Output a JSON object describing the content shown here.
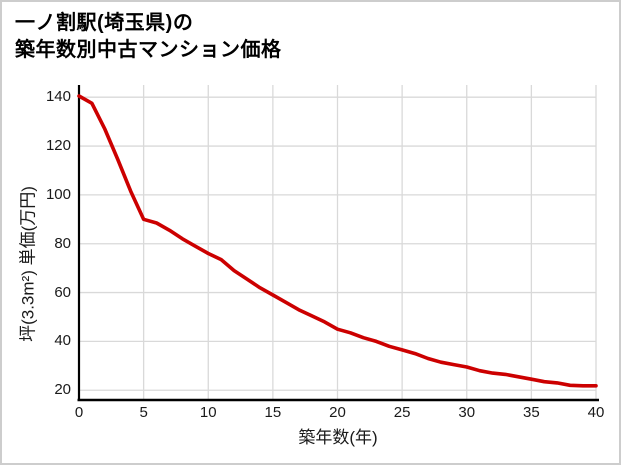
{
  "title": {
    "line1": "一ノ割駅(埼玉県)の",
    "line2": "築年数別中古マンション価格"
  },
  "colors": {
    "line": "#cc0000",
    "grid": "#d9d9d9",
    "axis": "#000000",
    "text": "#1a1a1a",
    "border": "#cdcdcd",
    "background": "#ffffff"
  },
  "chart_data": {
    "type": "line",
    "title": "一ノ割駅(埼玉県)の築年数別中古マンション価格",
    "xlabel": "築年数(年)",
    "ylabel": "坪(3.3m²) 単価(万円)",
    "x": [
      0,
      1,
      2,
      3,
      4,
      5,
      6,
      7,
      8,
      9,
      10,
      11,
      12,
      13,
      14,
      15,
      16,
      17,
      18,
      19,
      20,
      21,
      22,
      23,
      24,
      25,
      26,
      27,
      28,
      29,
      30,
      31,
      32,
      33,
      34,
      35,
      36,
      37,
      38,
      39,
      40
    ],
    "values": [
      140.5,
      137.5,
      127,
      114.5,
      101.5,
      90,
      88.5,
      85.5,
      82,
      79,
      76,
      73.5,
      69,
      65.5,
      62,
      59,
      56,
      53,
      50.5,
      48,
      45,
      43.5,
      41.5,
      40,
      38,
      36.5,
      35,
      33,
      31.5,
      30.5,
      29.5,
      28,
      27,
      26.5,
      25.5,
      24.5,
      23.5,
      23,
      22,
      21.8,
      21.8
    ],
    "x_ticks": [
      0,
      5,
      10,
      15,
      20,
      25,
      30,
      35,
      40
    ],
    "y_ticks": [
      20,
      40,
      60,
      80,
      100,
      120,
      140
    ],
    "xlim": [
      0,
      40
    ],
    "ylim": [
      16,
      145
    ],
    "grid": true,
    "legend": false
  }
}
